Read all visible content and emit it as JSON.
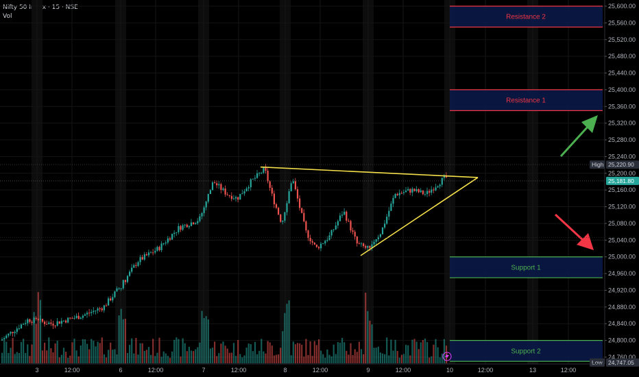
{
  "header": {
    "title": "Nifty 50 Index · 15 · NSE",
    "sub": "Vol"
  },
  "chart_data": {
    "type": "candlestick",
    "y_axis": {
      "ticks": [
        "25,600.00",
        "25,560.00",
        "25,520.00",
        "25,480.00",
        "25,440.00",
        "25,400.00",
        "25,360.00",
        "25,320.00",
        "25,280.00",
        "25,240.00",
        "25,200.00",
        "25,160.00",
        "25,120.00",
        "25,080.00",
        "25,040.00",
        "25,000.00",
        "24,960.00",
        "24,920.00",
        "24,880.00",
        "24,840.00",
        "24,800.00",
        "24,760.00"
      ],
      "range": [
        24745,
        25610
      ],
      "high_label": "High",
      "high_value": "25,220.90",
      "last_value": "25,181.80",
      "low_label": "Low",
      "low_value": "24,747.05"
    },
    "x_axis": {
      "ticks": [
        "3",
        "12:00",
        "6",
        "12:00",
        "7",
        "12:00",
        "8",
        "12:00",
        "9",
        "12:00",
        "10",
        "12:00",
        "13",
        "12:00"
      ]
    },
    "zones": [
      {
        "label": "Resistance 2",
        "from": 25550,
        "to": 25600,
        "color": "#f23645"
      },
      {
        "label": "Resistance 1",
        "from": 25350,
        "to": 25400,
        "color": "#f23645"
      },
      {
        "label": "Support 1",
        "from": 24950,
        "to": 25000,
        "color": "#4caf50"
      },
      {
        "label": "Support 2",
        "from": 24750,
        "to": 24800,
        "color": "#4caf50"
      }
    ],
    "trendlines": {
      "upper": [
        [
          25215,
          25190
        ]
      ],
      "lower": [
        [
          25003,
          25190
        ]
      ],
      "color": "#f5e04a"
    },
    "arrows": [
      {
        "direction": "up",
        "color": "#4caf50"
      },
      {
        "direction": "down",
        "color": "#f23645"
      }
    ],
    "colors": {
      "up": "#26a69a",
      "down": "#ef5350",
      "grid": "#1a1a1a"
    }
  }
}
